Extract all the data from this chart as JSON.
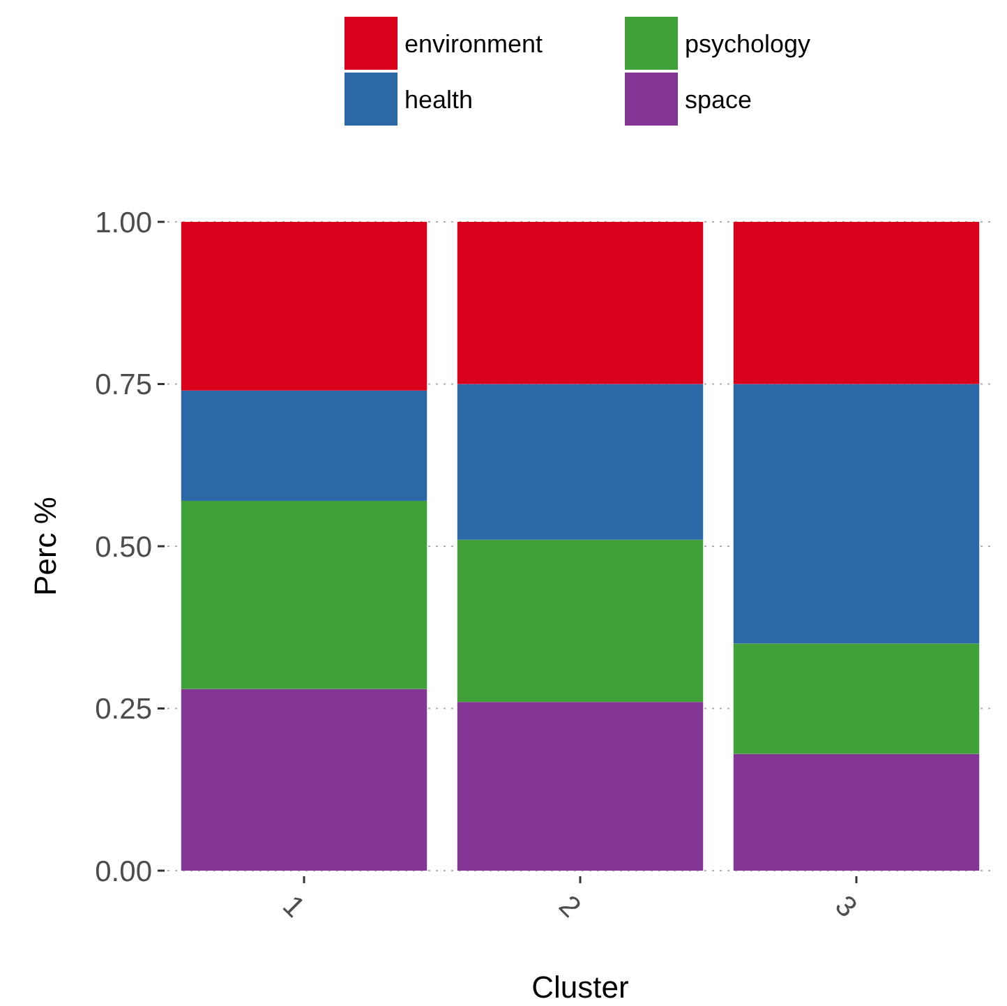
{
  "chart_data": {
    "type": "bar",
    "stacked": true,
    "xlabel": "Cluster",
    "ylabel": "Perc %",
    "categories": [
      "1",
      "2",
      "3"
    ],
    "series": [
      {
        "name": "space",
        "color": "#833694",
        "values": [
          0.28,
          0.26,
          0.18
        ]
      },
      {
        "name": "psychology",
        "color": "#40a03a",
        "values": [
          0.29,
          0.25,
          0.17
        ]
      },
      {
        "name": "health",
        "color": "#2c67a6",
        "values": [
          0.17,
          0.24,
          0.4
        ]
      },
      {
        "name": "environment",
        "color": "#d9001b",
        "values": [
          0.26,
          0.25,
          0.25
        ]
      }
    ],
    "ylim": [
      0,
      1
    ],
    "yticks": [
      {
        "value": 0,
        "label": "0.00"
      },
      {
        "value": 0.25,
        "label": "0.25"
      },
      {
        "value": 0.5,
        "label": "0.50"
      },
      {
        "value": 0.75,
        "label": "0.75"
      },
      {
        "value": 1,
        "label": "1.00"
      }
    ],
    "grid": true,
    "legend": "top"
  }
}
